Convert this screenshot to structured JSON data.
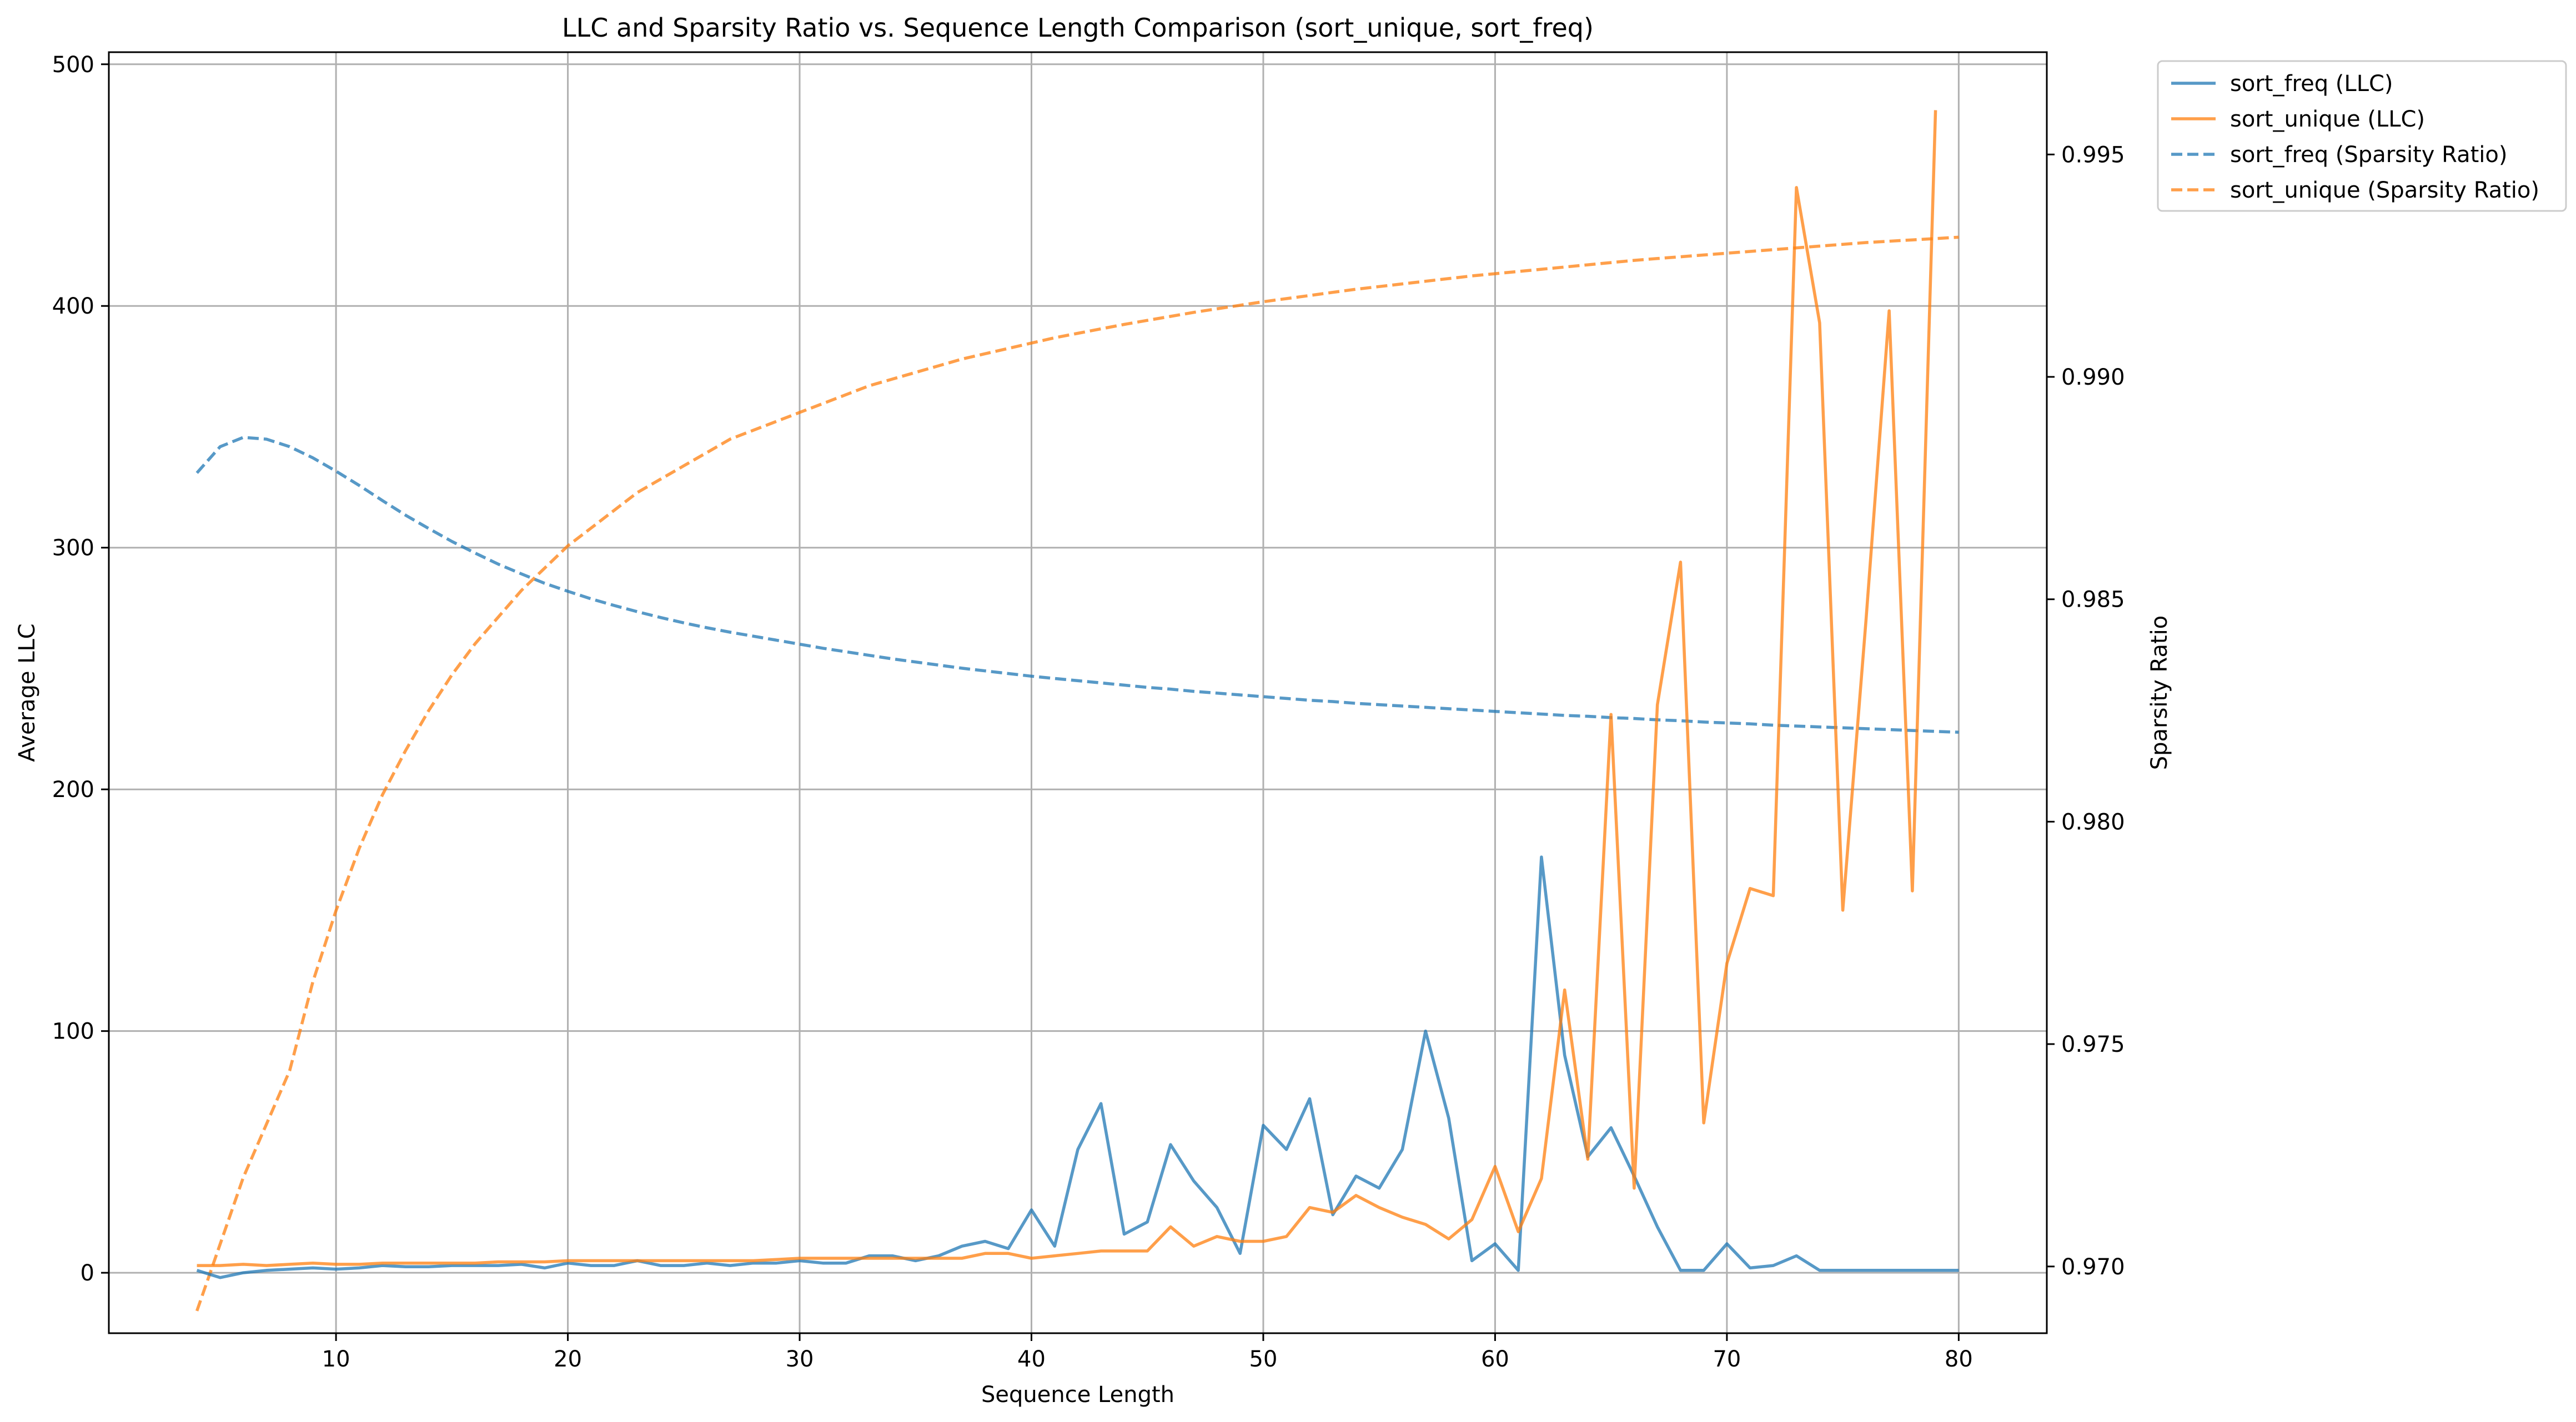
{
  "chart_data": {
    "type": "line",
    "title": "LLC and Sparsity Ratio vs. Sequence Length Comparison (sort_unique, sort_freq)",
    "xlabel": "Sequence Length",
    "ylabel": "Average LLC",
    "y2label": "Sparsity Ratio",
    "xlim": [
      0.2,
      83.8
    ],
    "ylim": [
      -25,
      505
    ],
    "y2lim": [
      0.9685,
      0.9973
    ],
    "xticks": [
      10,
      20,
      30,
      40,
      50,
      60,
      70,
      80
    ],
    "yticks": [
      0,
      100,
      200,
      300,
      400,
      500
    ],
    "y2ticks": [
      0.97,
      0.975,
      0.98,
      0.985,
      0.99,
      0.995
    ],
    "y2tick_labels": [
      "0.970",
      "0.975",
      "0.980",
      "0.985",
      "0.990",
      "0.995"
    ],
    "grid": true,
    "legend_position": "outside top-right",
    "colors": {
      "sort_freq": "#1f77b4",
      "sort_unique": "#ff7f0e"
    },
    "x": [
      4,
      5,
      6,
      7,
      8,
      9,
      10,
      11,
      12,
      13,
      14,
      15,
      16,
      17,
      18,
      19,
      20,
      21,
      22,
      23,
      24,
      25,
      26,
      27,
      28,
      29,
      30,
      31,
      32,
      33,
      34,
      35,
      36,
      37,
      38,
      39,
      40,
      41,
      42,
      43,
      44,
      45,
      46,
      47,
      48,
      49,
      50,
      51,
      52,
      53,
      54,
      55,
      56,
      57,
      58,
      59,
      60,
      61,
      62,
      63,
      64,
      65,
      66,
      67,
      68,
      69,
      70,
      71,
      72,
      73,
      74,
      75,
      76,
      77,
      78,
      79,
      80
    ],
    "series": [
      {
        "name": "sort_freq (LLC)",
        "axis": "left",
        "style": "solid",
        "color": "#1f77b4",
        "values": [
          1,
          -2,
          0,
          1,
          1.5,
          2,
          1.5,
          2,
          3,
          2.5,
          2.5,
          3,
          3,
          3,
          3.5,
          2,
          4,
          3,
          3,
          5,
          3,
          3,
          4,
          3,
          4,
          4,
          5,
          4,
          4,
          7,
          7,
          5,
          7,
          11,
          13,
          10,
          26,
          11,
          51,
          70,
          16,
          21,
          53,
          38,
          27,
          8,
          61,
          51,
          72,
          24,
          40,
          35,
          51,
          100,
          64,
          5,
          12,
          1,
          172,
          90,
          48,
          60,
          40,
          19,
          1,
          1,
          12,
          2,
          3,
          7,
          1,
          1,
          1,
          1,
          1,
          1,
          1
        ]
      },
      {
        "name": "sort_unique (LLC)",
        "axis": "left",
        "style": "solid",
        "color": "#ff7f0e",
        "values": [
          3,
          3,
          3.5,
          3,
          3.5,
          4,
          3.5,
          3.5,
          4,
          4,
          4,
          4,
          4,
          4.5,
          4.5,
          4.5,
          5,
          5,
          5,
          5,
          5,
          5,
          5,
          5,
          5,
          5.5,
          6,
          6,
          6,
          6,
          6,
          6,
          6,
          6,
          8,
          8,
          6,
          7,
          8,
          9,
          9,
          9,
          19,
          11,
          15,
          13,
          13,
          15,
          27,
          25,
          32,
          27,
          23,
          20,
          14,
          22,
          44,
          17,
          39,
          117,
          47,
          231,
          35,
          235,
          294,
          62,
          128,
          159,
          156,
          449,
          393,
          150,
          270,
          398,
          158,
          481,
          null
        ]
      },
      {
        "name": "sort_freq (Sparsity Ratio)",
        "axis": "right",
        "style": "dashed",
        "color": "#1f77b4",
        "values": [
          0.98784,
          0.98843,
          0.98864,
          0.9886,
          0.98843,
          0.98818,
          0.98788,
          0.98756,
          0.98722,
          0.98689,
          0.98659,
          0.9863,
          0.98604,
          0.98579,
          0.98557,
          0.98536,
          0.98518,
          0.98501,
          0.98486,
          0.98472,
          0.98459,
          0.98447,
          0.98436,
          0.98426,
          0.98417,
          0.98408,
          0.98399,
          0.9839,
          0.98382,
          0.98374,
          0.98366,
          0.98359,
          0.98352,
          0.98345,
          0.98339,
          0.98333,
          0.98327,
          0.98322,
          0.98317,
          0.98312,
          0.98307,
          0.98302,
          0.98298,
          0.98293,
          0.98289,
          0.98285,
          0.98281,
          0.98277,
          0.98273,
          0.9827,
          0.98266,
          0.98263,
          0.9826,
          0.98257,
          0.98254,
          0.98251,
          0.98248,
          0.98245,
          0.98242,
          0.98239,
          0.98237,
          0.98234,
          0.98232,
          0.98229,
          0.98227,
          0.98224,
          0.98222,
          0.9822,
          0.98217,
          0.98215,
          0.98213,
          0.98211,
          0.98209,
          0.98207,
          0.98205,
          0.98203,
          0.98201
        ]
      },
      {
        "name": "sort_unique (Sparsity Ratio)",
        "axis": "right",
        "style": "dashed",
        "color": "#ff7f0e",
        "values": [
          0.969,
          0.9705,
          0.972,
          0.9732,
          0.9744,
          0.9764,
          0.978,
          0.9794,
          0.9806,
          0.9816,
          0.9825,
          0.9833,
          0.984,
          0.9846,
          0.9852,
          0.9857,
          0.9862,
          0.9866,
          0.987,
          0.9874,
          0.9877,
          0.988,
          0.9883,
          0.9886,
          0.9888,
          0.989,
          0.9892,
          0.9894,
          0.9896,
          0.9898,
          0.98995,
          0.9901,
          0.99025,
          0.9904,
          0.99052,
          0.99064,
          0.99076,
          0.99088,
          0.99098,
          0.99108,
          0.99118,
          0.99127,
          0.99136,
          0.99145,
          0.99153,
          0.99161,
          0.99169,
          0.99176,
          0.99183,
          0.9919,
          0.99197,
          0.99203,
          0.99209,
          0.99215,
          0.99221,
          0.99227,
          0.99232,
          0.99237,
          0.99242,
          0.99247,
          0.99252,
          0.99257,
          0.99262,
          0.99266,
          0.9927,
          0.99274,
          0.99278,
          0.99282,
          0.99286,
          0.9929,
          0.99294,
          0.99298,
          0.99302,
          0.99305,
          0.99308,
          0.99311,
          0.99314
        ]
      }
    ]
  }
}
